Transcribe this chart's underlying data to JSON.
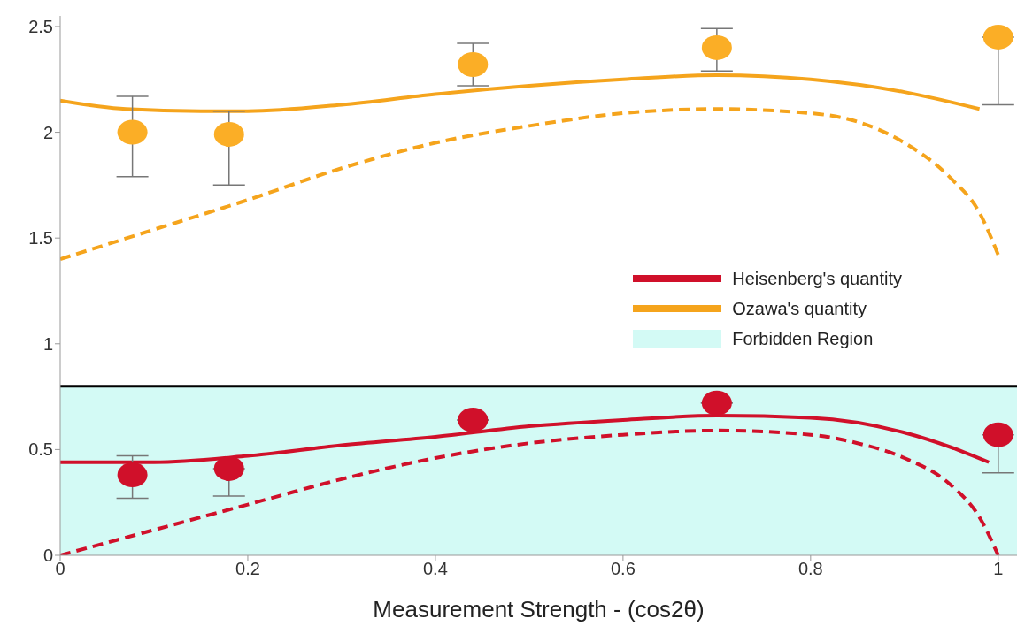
{
  "chart_data": {
    "type": "line",
    "xlabel": "Measurement Strength - (cos2θ)",
    "xlim": [
      0,
      1.02
    ],
    "ylim": [
      0,
      2.55
    ],
    "xticks": [
      0,
      0.2,
      0.4,
      0.6,
      0.8,
      1
    ],
    "yticks": [
      0,
      0.5,
      1,
      1.5,
      2,
      2.5
    ],
    "grid": false,
    "legend": "right",
    "marker": "none",
    "bands": [
      {
        "axis": "y",
        "from": 0,
        "to": 0.8,
        "label": "Forbidden Region",
        "color": "#d3faf5"
      }
    ],
    "ref_lines": [
      {
        "axis": "y",
        "value": 0.8,
        "color": "#000000"
      }
    ],
    "series": [
      {
        "name": "Heisenberg's quantity",
        "color": "#d0102a",
        "line_style": "solid",
        "x": [
          0,
          0.1,
          0.2,
          0.3,
          0.4,
          0.5,
          0.6,
          0.7,
          0.8,
          0.9,
          0.95,
          0.99
        ],
        "values": [
          0.44,
          0.44,
          0.47,
          0.52,
          0.56,
          0.61,
          0.64,
          0.66,
          0.65,
          0.58,
          0.51,
          0.44
        ]
      },
      {
        "name": "Ozawa's quantity",
        "color": "#f5a41c",
        "line_style": "solid",
        "x": [
          0,
          0.07,
          0.15,
          0.2,
          0.3,
          0.4,
          0.5,
          0.6,
          0.7,
          0.8,
          0.9,
          0.98
        ],
        "values": [
          2.15,
          2.11,
          2.1,
          2.1,
          2.13,
          2.18,
          2.22,
          2.25,
          2.27,
          2.25,
          2.19,
          2.11
        ]
      },
      {
        "color": "#d0102a",
        "line_style": "dashed",
        "x": [
          0,
          0.1,
          0.2,
          0.3,
          0.4,
          0.5,
          0.6,
          0.7,
          0.8,
          0.85,
          0.9,
          0.95,
          0.98,
          1
        ],
        "values": [
          0,
          0.12,
          0.24,
          0.36,
          0.46,
          0.53,
          0.57,
          0.59,
          0.57,
          0.53,
          0.46,
          0.33,
          0.18,
          0
        ]
      },
      {
        "color": "#f5a41c",
        "line_style": "dashed",
        "x": [
          0,
          0.1,
          0.2,
          0.3,
          0.4,
          0.5,
          0.6,
          0.7,
          0.8,
          0.85,
          0.9,
          0.95,
          0.98,
          1
        ],
        "values": [
          1.4,
          1.54,
          1.68,
          1.83,
          1.95,
          2.03,
          2.09,
          2.11,
          2.09,
          2.05,
          1.95,
          1.78,
          1.62,
          1.42
        ]
      },
      {
        "type": "scatter",
        "marker": "circle",
        "color": "#d0102a",
        "x": [
          0.077,
          0.18,
          0.44,
          0.7,
          1
        ],
        "values": [
          0.38,
          0.41,
          0.64,
          0.72,
          0.57
        ],
        "errors": [
          [
            0.27,
            0.47
          ],
          [
            0.28,
            0.41
          ],
          null,
          null,
          [
            0.39,
            0.57
          ]
        ]
      },
      {
        "type": "scatter",
        "marker": "circle",
        "color": "#fbae26",
        "x": [
          0.077,
          0.18,
          0.44,
          0.7,
          1
        ],
        "values": [
          2,
          1.99,
          2.32,
          2.4,
          2.45
        ],
        "errors": [
          [
            1.79,
            2.17
          ],
          [
            1.75,
            2.1
          ],
          [
            2.22,
            2.42
          ],
          [
            2.29,
            2.49
          ],
          [
            2.13,
            2.45
          ]
        ]
      }
    ]
  }
}
